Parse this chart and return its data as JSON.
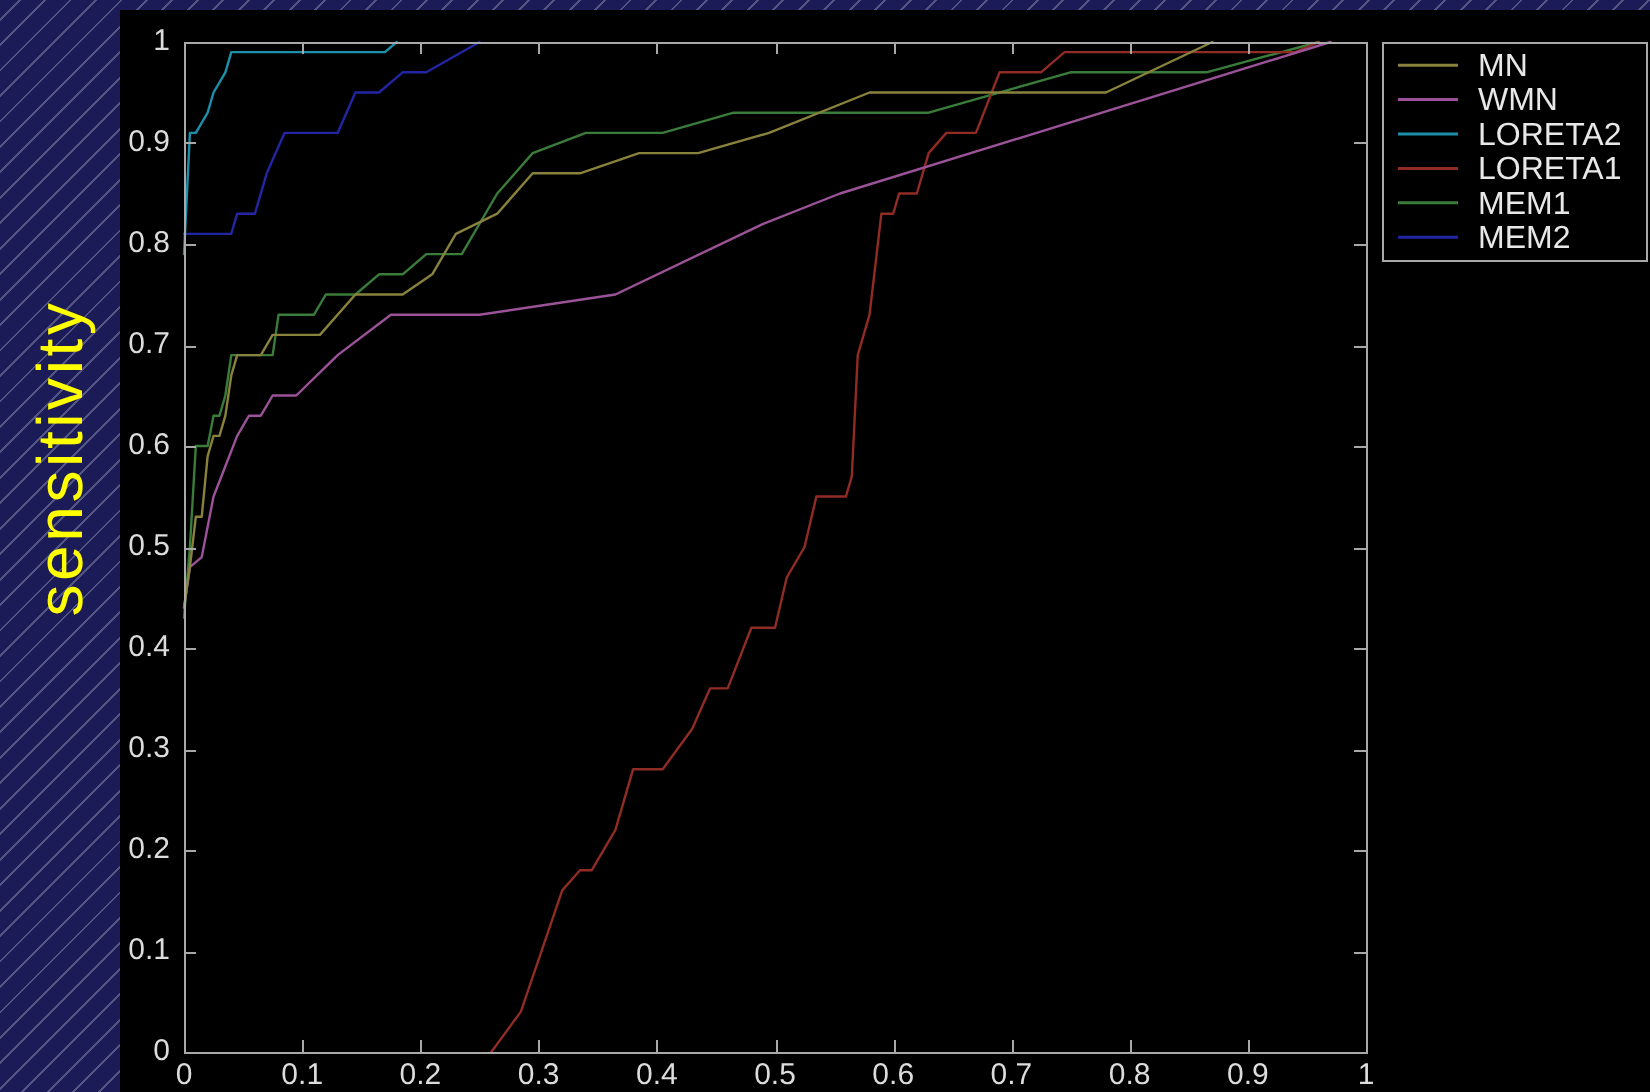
{
  "chart_data": {
    "type": "line",
    "ylabel": "sensitivity",
    "xlim": [
      0,
      1
    ],
    "ylim": [
      0,
      1
    ],
    "xticks": [
      0,
      0.1,
      0.2,
      0.3,
      0.4,
      0.5,
      0.6,
      0.7,
      0.8,
      0.9,
      1
    ],
    "yticks": [
      0,
      0.1,
      0.2,
      0.3,
      0.4,
      0.5,
      0.6,
      0.7,
      0.8,
      0.9,
      1
    ],
    "legend": "top right",
    "marker": "none",
    "line_style": "solid",
    "series": [
      {
        "name": "MN",
        "color": "#88823c",
        "x": [
          0,
          0.005,
          0.01,
          0.015,
          0.02,
          0.025,
          0.03,
          0.035,
          0.04,
          0.045,
          0.065,
          0.075,
          0.115,
          0.145,
          0.185,
          0.21,
          0.23,
          0.265,
          0.295,
          0.335,
          0.385,
          0.435,
          0.495,
          0.58,
          0.78,
          0.87
        ],
        "values": [
          0.44,
          0.48,
          0.53,
          0.53,
          0.59,
          0.61,
          0.61,
          0.63,
          0.67,
          0.69,
          0.69,
          0.71,
          0.71,
          0.75,
          0.75,
          0.77,
          0.81,
          0.83,
          0.87,
          0.87,
          0.89,
          0.89,
          0.91,
          0.95,
          0.95,
          1
        ]
      },
      {
        "name": "WMN",
        "color": "#9c5298",
        "x": [
          0,
          0.005,
          0.015,
          0.025,
          0.035,
          0.045,
          0.055,
          0.065,
          0.075,
          0.095,
          0.13,
          0.175,
          0.25,
          0.365,
          0.49,
          0.555,
          0.97
        ],
        "values": [
          0.44,
          0.48,
          0.49,
          0.55,
          0.58,
          0.61,
          0.63,
          0.63,
          0.65,
          0.65,
          0.69,
          0.73,
          0.73,
          0.75,
          0.82,
          0.85,
          1
        ]
      },
      {
        "name": "LORETA2",
        "color": "#1c90aa",
        "x": [
          0,
          0.005,
          0.01,
          0.02,
          0.025,
          0.035,
          0.04,
          0.17,
          0.18
        ],
        "values": [
          0.79,
          0.91,
          0.91,
          0.93,
          0.95,
          0.97,
          0.99,
          0.99,
          1
        ]
      },
      {
        "name": "LORETA1",
        "color": "#902c24",
        "x": [
          0.26,
          0.285,
          0.32,
          0.335,
          0.345,
          0.365,
          0.38,
          0.405,
          0.43,
          0.445,
          0.46,
          0.48,
          0.5,
          0.51,
          0.525,
          0.535,
          0.56,
          0.565,
          0.57,
          0.58,
          0.59,
          0.6,
          0.605,
          0.62,
          0.63,
          0.645,
          0.67,
          0.69,
          0.725,
          0.745,
          0.94,
          0.96
        ],
        "values": [
          0,
          0.04,
          0.16,
          0.18,
          0.18,
          0.22,
          0.28,
          0.28,
          0.32,
          0.36,
          0.36,
          0.42,
          0.42,
          0.47,
          0.5,
          0.55,
          0.55,
          0.57,
          0.69,
          0.73,
          0.83,
          0.83,
          0.85,
          0.85,
          0.89,
          0.91,
          0.91,
          0.97,
          0.97,
          0.99,
          0.99,
          1
        ]
      },
      {
        "name": "MEM1",
        "color": "#3a7c3a",
        "x": [
          0,
          0.005,
          0.01,
          0.02,
          0.025,
          0.03,
          0.035,
          0.04,
          0.045,
          0.075,
          0.08,
          0.11,
          0.12,
          0.145,
          0.165,
          0.185,
          0.205,
          0.235,
          0.265,
          0.295,
          0.34,
          0.405,
          0.465,
          0.63,
          0.75,
          0.865,
          0.96
        ],
        "values": [
          0.43,
          0.5,
          0.6,
          0.6,
          0.63,
          0.63,
          0.65,
          0.69,
          0.69,
          0.69,
          0.73,
          0.73,
          0.75,
          0.75,
          0.77,
          0.77,
          0.79,
          0.79,
          0.85,
          0.89,
          0.91,
          0.91,
          0.93,
          0.93,
          0.97,
          0.97,
          1
        ]
      },
      {
        "name": "MEM2",
        "color": "#2226a4",
        "x": [
          0,
          0.04,
          0.045,
          0.06,
          0.07,
          0.085,
          0.13,
          0.145,
          0.165,
          0.185,
          0.205,
          0.25
        ],
        "values": [
          0.81,
          0.81,
          0.83,
          0.83,
          0.87,
          0.91,
          0.91,
          0.95,
          0.95,
          0.97,
          0.97,
          1
        ]
      }
    ]
  }
}
